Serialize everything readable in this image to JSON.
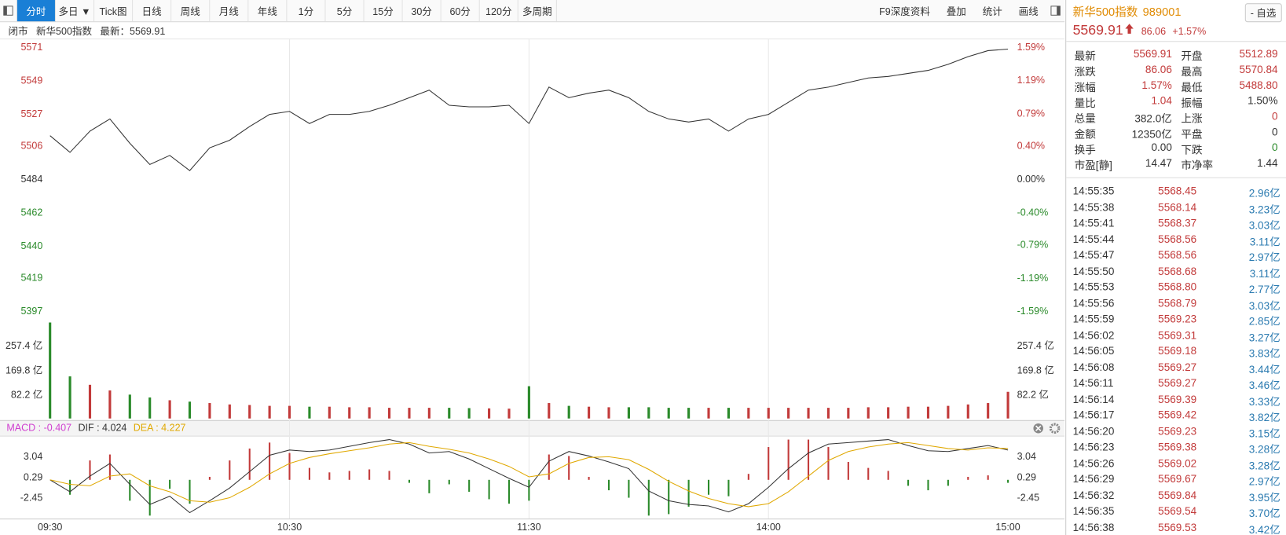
{
  "toolbar": {
    "tabs": [
      "分时",
      "多日 ▼",
      "Tick图",
      "日线",
      "周线",
      "月线",
      "年线",
      "1分",
      "5分",
      "15分",
      "30分",
      "60分",
      "120分",
      "多周期"
    ],
    "active": 0,
    "tools": [
      "F9深度资料",
      "叠加",
      "统计",
      "画线"
    ]
  },
  "info": {
    "status": "闭市",
    "name": "新华500指数",
    "latest": "最新：5569.91"
  },
  "chart_data": [
    {
      "type": "line",
      "color": "#333333",
      "up_color": "#c23a3a",
      "down_color": "#2a8a2a",
      "grid": "vertical",
      "values": [
        5513,
        5502,
        5516,
        5524,
        5508,
        5494,
        5500,
        5490,
        5505,
        5510,
        5519,
        5527,
        5529,
        5521,
        5527,
        5527,
        5529,
        5533,
        5538,
        5543,
        5533,
        5532,
        5532,
        5533,
        5521,
        5545,
        5538,
        5541,
        5543,
        5538,
        5529,
        5524,
        5522,
        5524,
        5516,
        5524,
        5527,
        5535,
        5543,
        5545,
        5548,
        5551,
        5552,
        5554,
        5556,
        5560,
        5565,
        5569,
        5570
      ],
      "ylim": [
        5397,
        5571
      ],
      "yticks": [
        5571,
        5549,
        5527,
        5506,
        5484,
        5462,
        5440,
        5419,
        5397
      ],
      "y2lim": [
        -1.59,
        1.59
      ],
      "y2ticks": [
        {
          "value": 1.59,
          "label": "1.59%"
        },
        {
          "value": 1.19,
          "label": "1.19%"
        },
        {
          "value": 0.79,
          "label": "0.79%"
        },
        {
          "value": 0.4,
          "label": "0.40%"
        },
        {
          "value": 0,
          "label": "0.00%"
        },
        {
          "value": -0.4,
          "label": "-0.40%"
        },
        {
          "value": -0.79,
          "label": "-0.79%"
        },
        {
          "value": -1.19,
          "label": "-1.19%"
        },
        {
          "value": -1.59,
          "label": "-1.59%"
        }
      ]
    },
    {
      "type": "bar",
      "up_color": "#c23a3a",
      "down_color": "#2a8a2a",
      "values": [
        342,
        150,
        120,
        100,
        85,
        75,
        65,
        60,
        55,
        50,
        48,
        45,
        45,
        42,
        42,
        40,
        40,
        38,
        38,
        38,
        38,
        37,
        36,
        35,
        115,
        55,
        45,
        42,
        40,
        40,
        40,
        38,
        38,
        38,
        38,
        38,
        38,
        38,
        38,
        38,
        38,
        40,
        40,
        42,
        42,
        45,
        50,
        55,
        95
      ],
      "ylim": [
        0,
        345
      ],
      "yticks": [
        {
          "value": 257.4,
          "label": "257.4 亿"
        },
        {
          "value": 169.8,
          "label": "169.8 亿"
        },
        {
          "value": 82.2,
          "label": "82.2 亿"
        }
      ]
    },
    {
      "type": "macd",
      "up_color": "#c23a3a",
      "down_color": "#2a8a2a",
      "categories": [
        "09:30",
        null,
        null,
        null,
        null,
        null,
        null,
        null,
        null,
        null,
        null,
        null,
        "10:30",
        null,
        null,
        null,
        null,
        null,
        null,
        null,
        null,
        null,
        null,
        null,
        "11:30",
        null,
        null,
        null,
        null,
        null,
        null,
        null,
        null,
        null,
        null,
        null,
        "14:00",
        null,
        null,
        null,
        null,
        null,
        null,
        null,
        null,
        null,
        null,
        null,
        "15:00"
      ],
      "series": [
        {
          "name": "MACD : -0.407",
          "color": "#d040d0",
          "values": [
            0,
            -2.0,
            2.6,
            3.4,
            -2.8,
            -4.8,
            -1.2,
            -3.2,
            0.4,
            2.6,
            4.2,
            5.0,
            3.6,
            1.6,
            1.0,
            1.2,
            1.4,
            1.2,
            -0.4,
            -1.8,
            -0.6,
            -1.6,
            -2.6,
            -3.2,
            -2.8,
            3.4,
            3.2,
            0.4,
            -1.4,
            -2.4,
            -4.8,
            -4.6,
            -3.6,
            -2.0,
            -2.2,
            0.8,
            4.4,
            5.4,
            5.4,
            4.4,
            2.4,
            1.6,
            1.2,
            -0.8,
            -1.4,
            -0.8,
            0.4,
            0.6,
            -0.4
          ]
        },
        {
          "name": "DIF : 4.024",
          "color": "#333333",
          "values": [
            0.0,
            -1.6,
            0.5,
            2.2,
            -0.6,
            -3.3,
            -2.2,
            -4.4,
            -2.8,
            -1.1,
            1.1,
            3.3,
            4.0,
            3.8,
            4.0,
            4.5,
            5.0,
            5.4,
            4.8,
            3.6,
            3.8,
            2.8,
            1.5,
            0.2,
            -1.0,
            2.5,
            3.8,
            3.2,
            2.4,
            1.5,
            -1.5,
            -2.8,
            -3.3,
            -3.5,
            -4.3,
            -3.2,
            -1.0,
            1.5,
            3.6,
            4.8,
            5.0,
            5.2,
            5.4,
            4.6,
            3.9,
            3.8,
            4.2,
            4.6,
            4.0
          ]
        },
        {
          "name": "DEA : 4.227",
          "color": "#e0a800",
          "values": [
            0.0,
            -0.6,
            -0.8,
            0.5,
            0.8,
            -0.8,
            -1.6,
            -2.8,
            -3.0,
            -2.4,
            -1.0,
            0.8,
            2.2,
            3.0,
            3.5,
            3.9,
            4.3,
            4.8,
            5.0,
            4.5,
            4.1,
            3.6,
            2.8,
            1.8,
            0.4,
            0.8,
            2.2,
            3.0,
            3.1,
            2.7,
            1.4,
            -0.2,
            -1.5,
            -2.5,
            -3.2,
            -3.6,
            -3.2,
            -1.6,
            0.5,
            2.6,
            3.8,
            4.4,
            4.8,
            5.0,
            4.6,
            4.2,
            4.0,
            4.3,
            4.2
          ]
        }
      ],
      "ylim": [
        -5.2,
        5.7
      ],
      "yticks": [
        3.04,
        0.29,
        -2.45
      ]
    }
  ],
  "quote": {
    "name": "新华500指数",
    "code": "989001",
    "button": "- 自选",
    "price": "5569.91",
    "change": "86.06",
    "change_pct": "+1.57%",
    "rows": [
      [
        "最新",
        "5569.91",
        "开盘",
        "5512.89"
      ],
      [
        "涨跌",
        "86.06",
        "最高",
        "5570.84"
      ],
      [
        "涨幅",
        "1.57%",
        "最低",
        "5488.80"
      ],
      [
        "量比",
        "1.04",
        "振幅",
        "1.50%"
      ],
      [
        "总量",
        "382.0亿",
        "上涨",
        "0"
      ],
      [
        "金额",
        "12350亿",
        "平盘",
        "0"
      ],
      [
        "换手",
        "0.00",
        "下跌",
        "0"
      ],
      [
        "市盈[静]",
        "14.47",
        "市净率",
        "1.44"
      ]
    ]
  },
  "trades": [
    [
      "14:55:35",
      "5568.45",
      "2.96亿"
    ],
    [
      "14:55:38",
      "5568.14",
      "3.23亿"
    ],
    [
      "14:55:41",
      "5568.37",
      "3.03亿"
    ],
    [
      "14:55:44",
      "5568.56",
      "3.11亿"
    ],
    [
      "14:55:47",
      "5568.56",
      "2.97亿"
    ],
    [
      "14:55:50",
      "5568.68",
      "3.11亿"
    ],
    [
      "14:55:53",
      "5568.80",
      "2.77亿"
    ],
    [
      "14:55:56",
      "5568.79",
      "3.03亿"
    ],
    [
      "14:55:59",
      "5569.23",
      "2.85亿"
    ],
    [
      "14:56:02",
      "5569.31",
      "3.27亿"
    ],
    [
      "14:56:05",
      "5569.18",
      "3.83亿"
    ],
    [
      "14:56:08",
      "5569.27",
      "3.44亿"
    ],
    [
      "14:56:11",
      "5569.27",
      "3.46亿"
    ],
    [
      "14:56:14",
      "5569.39",
      "3.33亿"
    ],
    [
      "14:56:17",
      "5569.42",
      "3.82亿"
    ],
    [
      "14:56:20",
      "5569.23",
      "3.15亿"
    ],
    [
      "14:56:23",
      "5569.38",
      "3.28亿"
    ],
    [
      "14:56:26",
      "5569.02",
      "3.28亿"
    ],
    [
      "14:56:29",
      "5569.67",
      "2.97亿"
    ],
    [
      "14:56:32",
      "5569.84",
      "3.95亿"
    ],
    [
      "14:56:35",
      "5569.54",
      "3.70亿"
    ],
    [
      "14:56:38",
      "5569.53",
      "3.42亿"
    ]
  ]
}
